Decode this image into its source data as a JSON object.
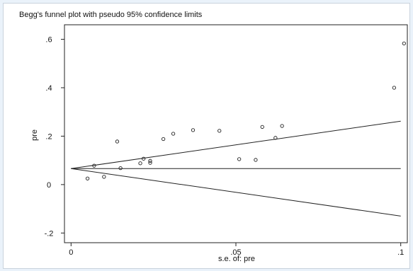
{
  "chart_data": {
    "type": "scatter",
    "title": "Begg's funnel plot with pseudo 95% confidence limits",
    "xlabel": "s.e. of: pre",
    "ylabel": "pre",
    "xlim": [
      -0.002,
      0.102
    ],
    "ylim": [
      -0.24,
      0.66
    ],
    "x_ticks": [
      0,
      0.05,
      0.1
    ],
    "x_tick_labels": [
      "0",
      ".05",
      ".1"
    ],
    "y_ticks": [
      -0.2,
      0,
      0.2,
      0.4,
      0.6
    ],
    "y_tick_labels": [
      "-.2",
      "0",
      ".2",
      ".4",
      ".6"
    ],
    "grid": false,
    "points": [
      {
        "x": 0.005,
        "y": 0.025
      },
      {
        "x": 0.007,
        "y": 0.078
      },
      {
        "x": 0.01,
        "y": 0.032
      },
      {
        "x": 0.014,
        "y": 0.178
      },
      {
        "x": 0.015,
        "y": 0.068
      },
      {
        "x": 0.021,
        "y": 0.088
      },
      {
        "x": 0.022,
        "y": 0.107
      },
      {
        "x": 0.024,
        "y": 0.09
      },
      {
        "x": 0.024,
        "y": 0.098
      },
      {
        "x": 0.028,
        "y": 0.188
      },
      {
        "x": 0.031,
        "y": 0.21
      },
      {
        "x": 0.037,
        "y": 0.225
      },
      {
        "x": 0.045,
        "y": 0.222
      },
      {
        "x": 0.051,
        "y": 0.105
      },
      {
        "x": 0.056,
        "y": 0.102
      },
      {
        "x": 0.058,
        "y": 0.238
      },
      {
        "x": 0.062,
        "y": 0.193
      },
      {
        "x": 0.064,
        "y": 0.242
      },
      {
        "x": 0.098,
        "y": 0.4
      },
      {
        "x": 0.101,
        "y": 0.583
      }
    ],
    "pooled_estimate": 0.066,
    "upper_limit": {
      "x": [
        0,
        0.1
      ],
      "y": [
        0.066,
        0.262
      ]
    },
    "lower_limit": {
      "x": [
        0,
        0.1
      ],
      "y": [
        0.066,
        -0.13
      ]
    }
  }
}
